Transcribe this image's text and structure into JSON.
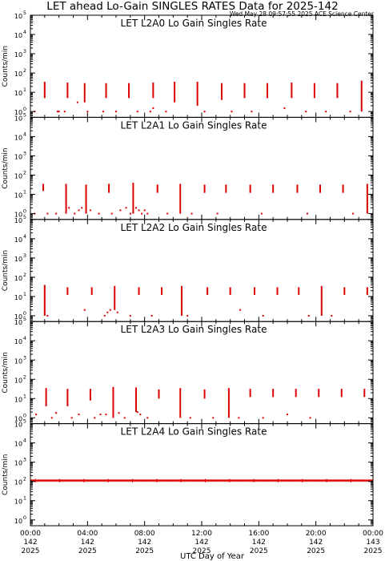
{
  "title": "LET ahead Lo-Gain SINGLES RATES Data for 2025-142",
  "timestamp": "Wed May 28 09:57:55 2025 ACE Science Center",
  "xlabel": "UTC Day of Year",
  "ylabel": "Counts/min",
  "colors": {
    "data": "#dd0000",
    "panel_title": "#1a1acc",
    "axis": "#000000"
  },
  "chart_data": {
    "type": "scatter",
    "x_unit": "UTC hour of day 2025-142",
    "xlim": [
      0,
      24
    ],
    "x_ticks": [
      {
        "t": 0,
        "l1": "00:00",
        "l2": "142",
        "l3": "2025"
      },
      {
        "t": 4,
        "l1": "04:00",
        "l2": "142",
        "l3": "2025"
      },
      {
        "t": 8,
        "l1": "08:00",
        "l2": "142",
        "l3": "2025"
      },
      {
        "t": 12,
        "l1": "12:00",
        "l2": "142",
        "l3": "2025"
      },
      {
        "t": 16,
        "l1": "16:00",
        "l2": "142",
        "l3": "2025"
      },
      {
        "t": 20,
        "l1": "20:00",
        "l2": "142",
        "l3": "2025"
      },
      {
        "t": 24,
        "l1": "00:00",
        "l2": "143",
        "l3": "2025"
      }
    ],
    "yscale": "log",
    "ylim": [
      0.5,
      100000
    ],
    "y_ticks": [
      {
        "v": 1,
        "b": "10",
        "e": "0"
      },
      {
        "v": 10,
        "b": "10",
        "e": "1"
      },
      {
        "v": 100,
        "b": "10",
        "e": "2"
      },
      {
        "v": 1000,
        "b": "10",
        "e": "3"
      },
      {
        "v": 10000,
        "b": "10",
        "e": "4"
      },
      {
        "v": 100000,
        "b": "10",
        "e": "5"
      }
    ],
    "panels": [
      {
        "name": "LET L2A0 Lo Gain Singles Rate",
        "spikes": [
          [
            1.0,
            5,
            35
          ],
          [
            2.6,
            5,
            32
          ],
          [
            3.8,
            3,
            30
          ],
          [
            5.3,
            5,
            30
          ],
          [
            6.9,
            5,
            30
          ],
          [
            8.6,
            5,
            32
          ],
          [
            10.1,
            3,
            35
          ],
          [
            11.7,
            2,
            35
          ],
          [
            13.4,
            4,
            30
          ],
          [
            15.0,
            5,
            30
          ],
          [
            16.6,
            5,
            30
          ],
          [
            18.3,
            5,
            32
          ],
          [
            19.9,
            5,
            30
          ],
          [
            21.5,
            5,
            30
          ],
          [
            23.2,
            1,
            40
          ]
        ],
        "points": [
          [
            0.3,
            1
          ],
          [
            1.9,
            1
          ],
          [
            2.0,
            1
          ],
          [
            2.4,
            1
          ],
          [
            3.3,
            3
          ],
          [
            4.0,
            1
          ],
          [
            5.1,
            1
          ],
          [
            6.0,
            1
          ],
          [
            7.5,
            1
          ],
          [
            8.4,
            1
          ],
          [
            8.6,
            1.5
          ],
          [
            9.5,
            1
          ],
          [
            12.2,
            1
          ],
          [
            14.1,
            1
          ],
          [
            15.5,
            1
          ],
          [
            17.8,
            1.5
          ],
          [
            19.3,
            1
          ],
          [
            20.7,
            1
          ],
          [
            22.4,
            1
          ]
        ]
      },
      {
        "name": "LET L2A1 Lo Gain Singles Rate",
        "spikes": [
          [
            0.9,
            15,
            35
          ],
          [
            2.5,
            1,
            35
          ],
          [
            3.9,
            1,
            32
          ],
          [
            5.5,
            12,
            35
          ],
          [
            7.2,
            1,
            40
          ],
          [
            8.9,
            12,
            32
          ],
          [
            10.5,
            1,
            35
          ],
          [
            12.2,
            12,
            32
          ],
          [
            13.7,
            12,
            32
          ],
          [
            15.4,
            12,
            32
          ],
          [
            17.0,
            12,
            32
          ],
          [
            18.7,
            12,
            32
          ],
          [
            20.3,
            12,
            32
          ],
          [
            21.9,
            12,
            32
          ],
          [
            23.6,
            1,
            35
          ]
        ],
        "points": [
          [
            0.3,
            1
          ],
          [
            1.2,
            1
          ],
          [
            1.8,
            1
          ],
          [
            2.7,
            2
          ],
          [
            3.1,
            1
          ],
          [
            3.4,
            1.5
          ],
          [
            3.6,
            2
          ],
          [
            4.2,
            1.5
          ],
          [
            4.8,
            1
          ],
          [
            5.7,
            1
          ],
          [
            6.3,
            1.5
          ],
          [
            6.7,
            2
          ],
          [
            7.0,
            1
          ],
          [
            7.4,
            2
          ],
          [
            7.6,
            1.5
          ],
          [
            7.8,
            1
          ],
          [
            8.0,
            1.5
          ],
          [
            8.2,
            1
          ],
          [
            9.6,
            1
          ],
          [
            11.3,
            1
          ],
          [
            13.1,
            1
          ],
          [
            16.2,
            1
          ],
          [
            19.4,
            1
          ],
          [
            22.6,
            1
          ]
        ]
      },
      {
        "name": "LET L2A2 Lo Gain Singles Rate",
        "spikes": [
          [
            1.0,
            1,
            40
          ],
          [
            2.6,
            12,
            30
          ],
          [
            4.3,
            12,
            30
          ],
          [
            5.9,
            2,
            35
          ],
          [
            7.6,
            12,
            30
          ],
          [
            9.2,
            12,
            30
          ],
          [
            10.6,
            1,
            35
          ],
          [
            12.4,
            12,
            30
          ],
          [
            14.0,
            12,
            30
          ],
          [
            15.7,
            12,
            30
          ],
          [
            17.3,
            12,
            30
          ],
          [
            18.8,
            12,
            30
          ],
          [
            20.4,
            1,
            35
          ],
          [
            22.0,
            12,
            30
          ],
          [
            23.6,
            12,
            30
          ]
        ],
        "points": [
          [
            1.2,
            1
          ],
          [
            3.8,
            2
          ],
          [
            5.2,
            1
          ],
          [
            5.4,
            1.5
          ],
          [
            5.6,
            2
          ],
          [
            6.1,
            1.5
          ],
          [
            7.0,
            1
          ],
          [
            8.5,
            1
          ],
          [
            11.0,
            1
          ],
          [
            14.7,
            2
          ],
          [
            16.3,
            1
          ],
          [
            19.5,
            1
          ],
          [
            21.1,
            1
          ]
        ]
      },
      {
        "name": "LET L2A3 Lo Gain Singles Rate",
        "spikes": [
          [
            1.1,
            4,
            35
          ],
          [
            2.6,
            4,
            32
          ],
          [
            4.2,
            8,
            32
          ],
          [
            5.8,
            1,
            40
          ],
          [
            7.4,
            2,
            38
          ],
          [
            9.0,
            10,
            30
          ],
          [
            10.5,
            1,
            35
          ],
          [
            12.2,
            10,
            30
          ],
          [
            13.9,
            1,
            35
          ],
          [
            15.4,
            12,
            32
          ],
          [
            17.0,
            12,
            32
          ],
          [
            18.6,
            12,
            32
          ],
          [
            20.2,
            12,
            32
          ],
          [
            21.8,
            12,
            32
          ],
          [
            23.4,
            12,
            32
          ]
        ],
        "points": [
          [
            0.4,
            1.5
          ],
          [
            1.5,
            1
          ],
          [
            1.8,
            1.8
          ],
          [
            2.9,
            1
          ],
          [
            3.4,
            1.5
          ],
          [
            4.5,
            1
          ],
          [
            4.9,
            1.5
          ],
          [
            5.3,
            1.5
          ],
          [
            6.2,
            1.8
          ],
          [
            6.6,
            1
          ],
          [
            7.5,
            2
          ],
          [
            7.7,
            1.5
          ],
          [
            8.2,
            1
          ],
          [
            11.2,
            1
          ],
          [
            12.8,
            1
          ],
          [
            14.6,
            1
          ],
          [
            16.3,
            1
          ],
          [
            18.0,
            1.5
          ],
          [
            19.6,
            1
          ]
        ]
      },
      {
        "name": "LET L2A4 Lo Gain Singles Rate",
        "baseline": 110,
        "baseline_spread": [
          95,
          130
        ],
        "spikes": [],
        "points": []
      }
    ]
  }
}
